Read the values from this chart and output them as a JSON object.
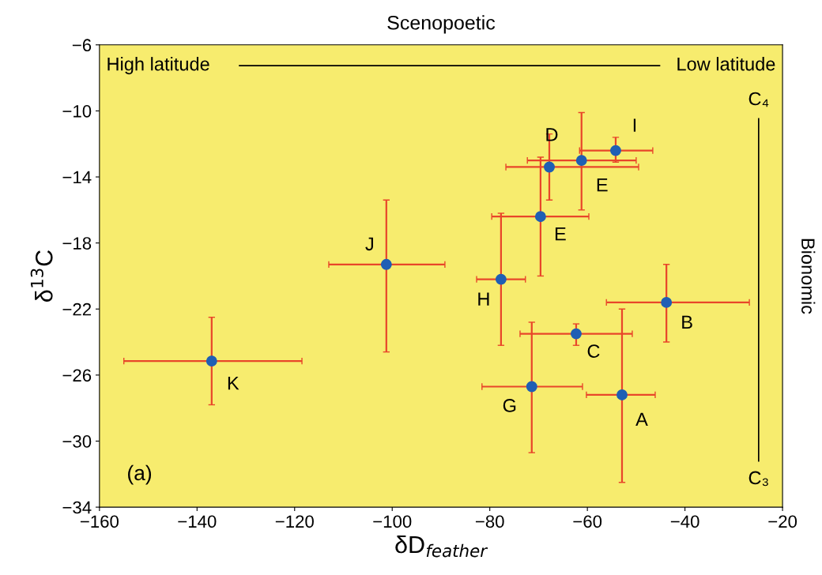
{
  "chart_data": {
    "type": "scatter",
    "title": "Scenopoetic",
    "xlabel": "δD$_{feather}$",
    "ylabel": "δ$^{13}$C",
    "x": [
      -137,
      -101.2,
      -77.7,
      -69.6,
      -67.8,
      -61.2,
      -54.2,
      -43.8,
      -62.3,
      -71.4,
      -52.9
    ],
    "values": [
      -25.15,
      -19.3,
      -20.2,
      -16.4,
      -13.4,
      -13.0,
      -12.4,
      -21.6,
      -23.5,
      -26.7,
      -27.2
    ],
    "xerrors": [
      [
        -155,
        -118.5
      ],
      [
        -113,
        -89.2
      ],
      [
        -82.7,
        -72.7
      ],
      [
        -79.6,
        -59.7
      ],
      [
        -76.7,
        -49.5
      ],
      [
        -72.3,
        -50
      ],
      [
        -61.6,
        -46.6
      ],
      [
        -56.1,
        -26.8
      ],
      [
        -73.8,
        -50.8
      ],
      [
        -81.6,
        -61.0
      ],
      [
        -60.2,
        -46.1
      ]
    ],
    "errors": [
      [
        -27.8,
        -22.5
      ],
      [
        -24.6,
        -15.4
      ],
      [
        -24.2,
        -16.2
      ],
      [
        -20.0,
        -12.8
      ],
      [
        -15.4,
        -11.4
      ],
      [
        -16.0,
        -10.1
      ],
      [
        -13.1,
        -11.6
      ],
      [
        -24.0,
        -19.3
      ],
      [
        -24.2,
        -22.9
      ],
      [
        -30.7,
        -22.8
      ],
      [
        -32.5,
        -22.0
      ]
    ],
    "color": "#1f5fb4",
    "marker": "circle",
    "grid": false,
    "legend": false,
    "xlim": [
      -160,
      -20
    ],
    "ylim": [
      -34,
      -6
    ],
    "xticks": [
      -160,
      -140,
      -120,
      -100,
      -80,
      -60,
      -40,
      -20
    ],
    "yticks": [
      -34,
      -30,
      -26,
      -22,
      -18,
      -14,
      -10,
      -6
    ],
    "annotations": [
      {
        "text": "K",
        "x": -137,
        "y": -25.15
      },
      {
        "text": "J",
        "x": -101.2,
        "y": -19.3
      },
      {
        "text": "H",
        "x": -77.7,
        "y": -20.2
      },
      {
        "text": "E",
        "x": -69.6,
        "y": -16.4
      },
      {
        "text": "D",
        "x": -67.8,
        "y": -13.4
      },
      {
        "text": "E",
        "x": -61.2,
        "y": -13.0
      },
      {
        "text": "I",
        "x": -54.2,
        "y": -12.4
      },
      {
        "text": "B",
        "x": -43.8,
        "y": -21.6
      },
      {
        "text": "C",
        "x": -62.3,
        "y": -23.5
      },
      {
        "text": "G",
        "x": -71.4,
        "y": -26.7
      },
      {
        "text": "A",
        "x": -52.9,
        "y": -27.2
      },
      "(a)",
      "High latitude",
      "Low latitude",
      "C₄",
      "C₃",
      "Bionomic"
    ]
  }
}
